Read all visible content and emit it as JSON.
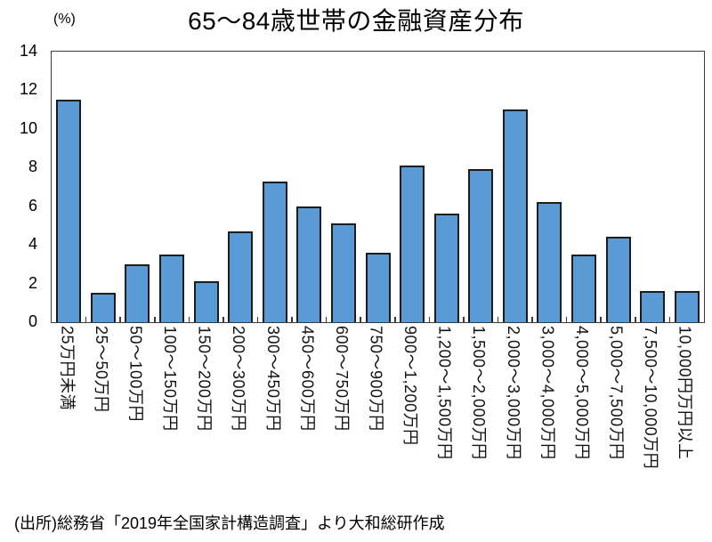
{
  "chart": {
    "title": "65～84歳世帯の金融資産分布",
    "unit_label": "(%)",
    "source": "(出所)総務省「2019年全国家計構造調査」より大和総研作成"
  },
  "chart_data": {
    "type": "bar",
    "title": "65～84歳世帯の金融資産分布",
    "unit": "%",
    "categories": [
      "25万円未満",
      "25～50万円",
      "50～100万円",
      "100～150万円",
      "150～200万円",
      "200～300万円",
      "300～450万円",
      "450～600万円",
      "600～750万円",
      "750～900万円",
      "900～1,200万円",
      "1,200～1,500万円",
      "1,500～2,000万円",
      "2,000～3,000万円",
      "3,000～4,000万円",
      "4,000～5,000万円",
      "5,000～7,500万円",
      "7,500～10,000万円",
      "10,000円万円以上"
    ],
    "values": [
      11.5,
      1.5,
      3.0,
      3.5,
      2.1,
      4.7,
      7.3,
      6.0,
      5.1,
      3.6,
      8.1,
      5.6,
      7.9,
      11.0,
      6.2,
      3.5,
      4.4,
      1.6,
      1.6
    ],
    "xlabel": "",
    "ylabel": "(%)",
    "ylim": [
      0,
      14
    ],
    "yticks": [
      0,
      2,
      4,
      6,
      8,
      10,
      12,
      14
    ],
    "grid": false,
    "legend_position": "none",
    "bar_color": "#5B9BD5",
    "bar_border_color": "#1c1c1c",
    "axis_color": "#3a3a3a",
    "source": "(出所)総務省「2019年全国家計構造調査」より大和総研作成"
  }
}
